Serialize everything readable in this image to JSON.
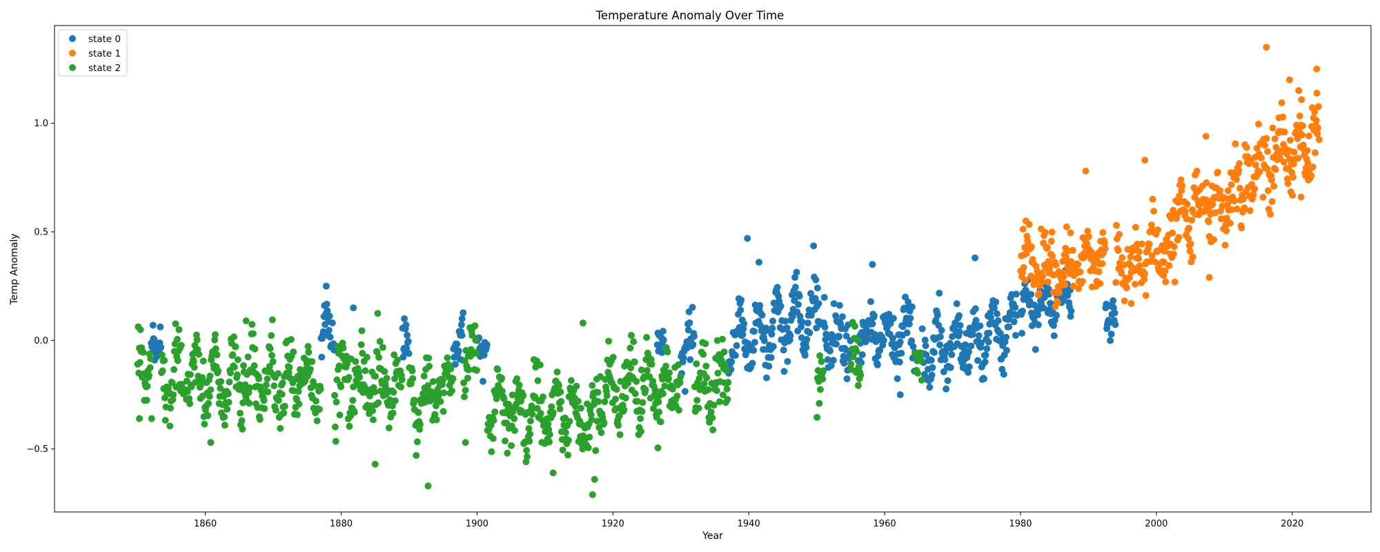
{
  "chart_data": {
    "type": "scatter",
    "title": "Temperature Anomaly Over Time",
    "xlabel": "Year",
    "ylabel": "Temp Anomaly",
    "xlim": [
      1837.8,
      2031.6
    ],
    "ylim": [
      -0.79,
      1.45
    ],
    "xticks": [
      1860,
      1880,
      1900,
      1920,
      1940,
      1960,
      1980,
      2000,
      2020
    ],
    "yticks": [
      -0.5,
      0.0,
      0.5,
      1.0
    ],
    "ytick_labels": [
      "−0.5",
      "0.0",
      "0.5",
      "1.0"
    ],
    "grid": false,
    "legend_position": "top-left",
    "series": [
      {
        "name": "state 0",
        "color": "#1f77b4",
        "segments": [
          {
            "x_start": 1852.0,
            "x_end": 1853.5,
            "mean": 0.01,
            "trend": 0.0,
            "amp": 0.04,
            "noise": 0.03
          },
          {
            "x_start": 1877.0,
            "x_end": 1879.0,
            "mean": 0.03,
            "trend": 0.02,
            "amp": 0.08,
            "noise": 0.06
          },
          {
            "x_start": 1889.0,
            "x_end": 1890.0,
            "mean": 0.0,
            "trend": 0.0,
            "amp": 0.04,
            "noise": 0.04
          },
          {
            "x_start": 1896.5,
            "x_end": 1898.0,
            "mean": -0.02,
            "trend": 0.0,
            "amp": 0.05,
            "noise": 0.05
          },
          {
            "x_start": 1900.0,
            "x_end": 1901.5,
            "mean": -0.02,
            "trend": 0.0,
            "amp": 0.04,
            "noise": 0.04
          },
          {
            "x_start": 1926.5,
            "x_end": 1927.5,
            "mean": 0.03,
            "trend": 0.0,
            "amp": 0.04,
            "noise": 0.04
          },
          {
            "x_start": 1930.0,
            "x_end": 1932.0,
            "mean": -0.02,
            "trend": 0.02,
            "amp": 0.06,
            "noise": 0.05
          },
          {
            "x_start": 1937.0,
            "x_end": 1950.5,
            "mean": 0.06,
            "trend": 0.15,
            "amp": 0.12,
            "noise": 0.06
          },
          {
            "x_start": 1951.0,
            "x_end": 1955.0,
            "mean": 0.02,
            "trend": -0.02,
            "amp": 0.07,
            "noise": 0.06
          },
          {
            "x_start": 1956.0,
            "x_end": 1964.5,
            "mean": 0.03,
            "trend": 0.0,
            "amp": 0.08,
            "noise": 0.06
          },
          {
            "x_start": 1965.5,
            "x_end": 1979.5,
            "mean": 0.0,
            "trend": 0.12,
            "amp": 0.09,
            "noise": 0.06
          },
          {
            "x_start": 1980.0,
            "x_end": 1987.5,
            "mean": 0.17,
            "trend": 0.05,
            "amp": 0.08,
            "noise": 0.05
          },
          {
            "x_start": 1992.5,
            "x_end": 1994.0,
            "mean": 0.13,
            "trend": 0.0,
            "amp": 0.06,
            "noise": 0.05
          }
        ],
        "notable_points": [
          [
            1852.3,
            0.07
          ],
          [
            1877.8,
            0.25
          ],
          [
            1881.8,
            0.15
          ],
          [
            1889.3,
            0.1
          ],
          [
            1897.8,
            0.1
          ],
          [
            1939.8,
            0.47
          ],
          [
            1941.5,
            0.36
          ],
          [
            1958.2,
            0.35
          ],
          [
            1973.3,
            0.38
          ],
          [
            1962.3,
            -0.25
          ]
        ]
      },
      {
        "name": "state 1",
        "color": "#ff7f0e",
        "segments": [
          {
            "x_start": 1980.0,
            "x_end": 1984.0,
            "mean": 0.36,
            "trend": 0.0,
            "amp": 0.07,
            "noise": 0.06
          },
          {
            "x_start": 1984.0,
            "x_end": 1992.5,
            "mean": 0.34,
            "trend": 0.08,
            "amp": 0.07,
            "noise": 0.06
          },
          {
            "x_start": 1994.0,
            "x_end": 2002.0,
            "mean": 0.39,
            "trend": 0.15,
            "amp": 0.08,
            "noise": 0.07
          },
          {
            "x_start": 2002.0,
            "x_end": 2013.0,
            "mean": 0.62,
            "trend": 0.12,
            "amp": 0.09,
            "noise": 0.07
          },
          {
            "x_start": 2013.0,
            "x_end": 2024.0,
            "mean": 0.86,
            "trend": 0.15,
            "amp": 0.11,
            "noise": 0.08
          }
        ],
        "notable_points": [
          [
            2016.2,
            1.35
          ],
          [
            2023.6,
            1.25
          ],
          [
            2019.6,
            1.2
          ],
          [
            1989.6,
            0.78
          ],
          [
            1998.3,
            0.83
          ],
          [
            2007.3,
            0.94
          ],
          [
            1996.3,
            0.17
          ],
          [
            2007.8,
            0.29
          ],
          [
            2021.3,
            0.66
          ],
          [
            1980.8,
            0.55
          ]
        ]
      },
      {
        "name": "state 2",
        "color": "#2ca02c",
        "segments": [
          {
            "x_start": 1850.0,
            "x_end": 1852.0,
            "mean": -0.12,
            "trend": 0.05,
            "amp": 0.08,
            "noise": 0.06
          },
          {
            "x_start": 1853.5,
            "x_end": 1877.0,
            "mean": -0.18,
            "trend": 0.0,
            "amp": 0.1,
            "noise": 0.07
          },
          {
            "x_start": 1879.0,
            "x_end": 1889.0,
            "mean": -0.2,
            "trend": -0.05,
            "amp": 0.09,
            "noise": 0.07
          },
          {
            "x_start": 1890.0,
            "x_end": 1896.5,
            "mean": -0.24,
            "trend": 0.05,
            "amp": 0.09,
            "noise": 0.07
          },
          {
            "x_start": 1898.0,
            "x_end": 1900.0,
            "mean": -0.1,
            "trend": 0.0,
            "amp": 0.07,
            "noise": 0.06
          },
          {
            "x_start": 1901.5,
            "x_end": 1917.5,
            "mean": -0.33,
            "trend": -0.08,
            "amp": 0.1,
            "noise": 0.07
          },
          {
            "x_start": 1917.5,
            "x_end": 1930.0,
            "mean": -0.22,
            "trend": 0.1,
            "amp": 0.1,
            "noise": 0.07
          },
          {
            "x_start": 1932.0,
            "x_end": 1937.0,
            "mean": -0.17,
            "trend": 0.05,
            "amp": 0.09,
            "noise": 0.07
          },
          {
            "x_start": 1950.0,
            "x_end": 1951.0,
            "mean": -0.15,
            "trend": 0.0,
            "amp": 0.07,
            "noise": 0.06
          },
          {
            "x_start": 1955.0,
            "x_end": 1956.5,
            "mean": -0.12,
            "trend": 0.0,
            "amp": 0.07,
            "noise": 0.06
          },
          {
            "x_start": 1964.5,
            "x_end": 1965.5,
            "mean": -0.12,
            "trend": 0.0,
            "amp": 0.06,
            "noise": 0.05
          }
        ],
        "notable_points": [
          [
            1850.3,
            -0.36
          ],
          [
            1852.1,
            -0.36
          ],
          [
            1866.0,
            0.09
          ],
          [
            1892.8,
            -0.67
          ],
          [
            1885.0,
            -0.57
          ],
          [
            1917.0,
            -0.71
          ],
          [
            1917.3,
            -0.64
          ],
          [
            1911.2,
            -0.61
          ],
          [
            1915.6,
            0.08
          ],
          [
            1898.3,
            -0.47
          ],
          [
            1860.8,
            -0.47
          ]
        ]
      }
    ]
  }
}
